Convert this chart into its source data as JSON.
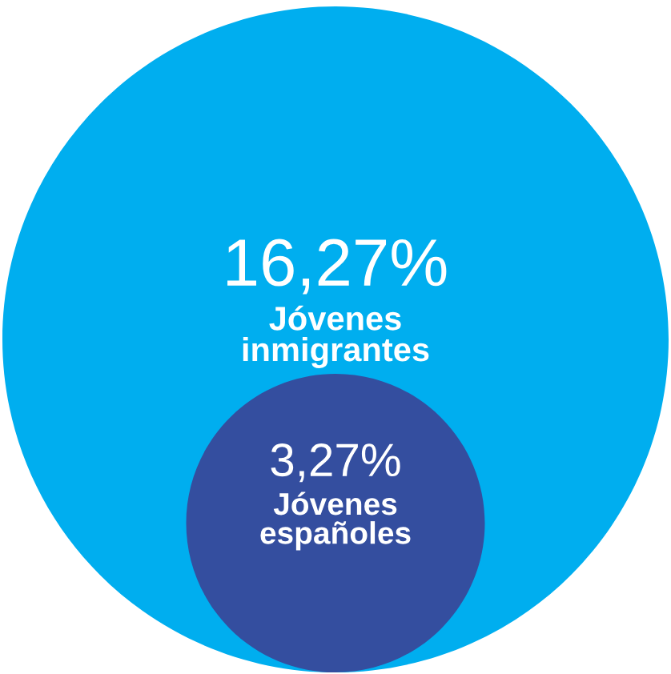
{
  "chart_data": {
    "type": "other",
    "categories": [
      "Jóvenes inmigrantes",
      "Jóvenes españoles"
    ],
    "values": [
      16.27,
      3.27
    ],
    "value_labels": [
      "16,27%",
      "3,27%"
    ],
    "colors": [
      "#00aeef",
      "#344e9f"
    ]
  }
}
